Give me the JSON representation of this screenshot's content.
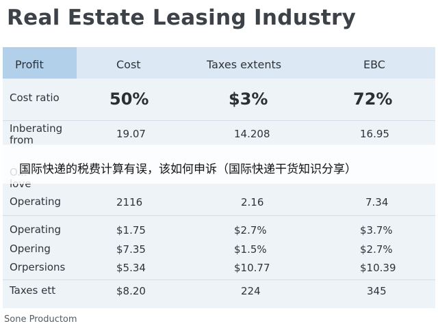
{
  "title": "Real Estate Leasing Industry",
  "table": {
    "headers": [
      "Profit",
      "Cost",
      "Taxes extents",
      "EBC"
    ],
    "rows": [
      {
        "label": "Cost ratio",
        "values": [
          "50%",
          "$3%",
          "72%"
        ]
      },
      {
        "label": "Inberating from",
        "values": [
          "19.07",
          "14.208",
          "16.95"
        ]
      },
      {
        "label": "O... love",
        "values": [
          "",
          "",
          ""
        ]
      },
      {
        "label": "Operating",
        "values": [
          "2116",
          "2.16",
          "7.34"
        ]
      },
      {
        "label": "Operating",
        "values": [
          "$1.75",
          "$2.7%",
          "$3.7%"
        ]
      },
      {
        "label": "Opering",
        "values": [
          "$7.35",
          "$1.5%",
          "$2.7%"
        ]
      },
      {
        "label": "Orpersions",
        "values": [
          "$5.34",
          "$10.77",
          "$10.39"
        ]
      },
      {
        "label": "Taxes ett",
        "values": [
          "$8.20",
          "224",
          "345"
        ]
      }
    ]
  },
  "overlay_caption": "国际快递的税费计算有误，该如何申诉（国际快递干货知识分享）",
  "footer": "Sone Productom",
  "colors": {
    "header_first_cell": "#b3d0ea",
    "header_row": "#dce8f3",
    "table_bg": "#eef3f8",
    "title_text": "#3c4248"
  }
}
